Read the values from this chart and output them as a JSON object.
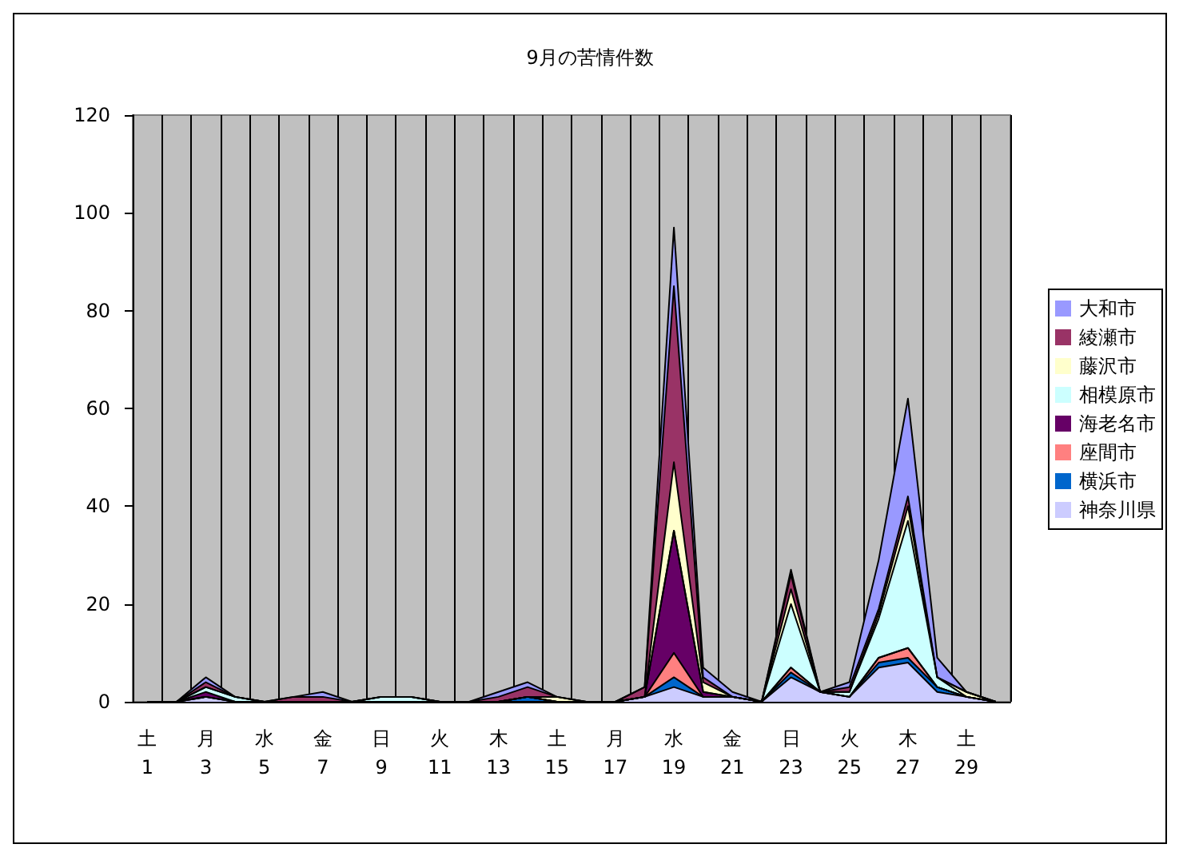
{
  "chart_data": {
    "type": "area",
    "title": "9月の苦情件数",
    "stacked": true,
    "categories": [
      "土\n1",
      null,
      "月\n3",
      null,
      "水\n5",
      null,
      "金\n7",
      null,
      "日\n9",
      null,
      "火\n11",
      null,
      "木\n13",
      null,
      "土\n15",
      null,
      "月\n17",
      null,
      "水\n19",
      null,
      "金\n21",
      null,
      "日\n23",
      null,
      "火\n25",
      null,
      "木\n27",
      null,
      "土\n29",
      null
    ],
    "series": [
      {
        "name": "神奈川県",
        "color": "#ccccff",
        "values": [
          0,
          0,
          1,
          0,
          0,
          0,
          0,
          0,
          0,
          0,
          0,
          0,
          0,
          0,
          0,
          0,
          0,
          1,
          3,
          1,
          1,
          0,
          5,
          2,
          1,
          7,
          8,
          2,
          1,
          0
        ]
      },
      {
        "name": "横浜市",
        "color": "#0066cc",
        "values": [
          0,
          0,
          0,
          0,
          0,
          0,
          0,
          0,
          0,
          0,
          0,
          0,
          0,
          1,
          0,
          0,
          0,
          0,
          2,
          0,
          0,
          0,
          1,
          0,
          0,
          1,
          1,
          1,
          0,
          0
        ]
      },
      {
        "name": "座間市",
        "color": "#ff8080",
        "values": [
          0,
          0,
          0,
          0,
          0,
          0,
          0,
          0,
          0,
          0,
          0,
          0,
          0,
          0,
          0,
          0,
          0,
          0,
          5,
          0,
          0,
          0,
          1,
          0,
          0,
          1,
          2,
          0,
          0,
          0
        ]
      },
      {
        "name": "海老名市",
        "color": "#660066",
        "values": [
          0,
          0,
          1,
          0,
          0,
          0,
          0,
          0,
          0,
          0,
          0,
          0,
          0,
          0,
          0,
          0,
          0,
          0,
          25,
          1,
          0,
          0,
          0,
          0,
          0,
          0,
          0,
          0,
          0,
          0
        ]
      },
      {
        "name": "相模原市",
        "color": "#ccffff",
        "values": [
          0,
          0,
          1,
          1,
          0,
          0,
          0,
          0,
          1,
          1,
          0,
          0,
          0,
          0,
          0,
          0,
          0,
          0,
          0,
          0,
          0,
          0,
          13,
          0,
          1,
          8,
          26,
          2,
          0,
          0
        ]
      },
      {
        "name": "藤沢市",
        "color": "#ffffcc",
        "values": [
          0,
          0,
          0,
          0,
          0,
          0,
          0,
          0,
          0,
          0,
          0,
          0,
          0,
          0,
          1,
          0,
          0,
          0,
          14,
          2,
          0,
          0,
          3,
          0,
          0,
          1,
          3,
          0,
          1,
          0
        ]
      },
      {
        "name": "綾瀬市",
        "color": "#993366",
        "values": [
          0,
          0,
          1,
          0,
          0,
          1,
          1,
          0,
          0,
          0,
          0,
          0,
          1,
          2,
          0,
          0,
          0,
          2,
          36,
          1,
          0,
          0,
          3,
          0,
          1,
          1,
          2,
          0,
          0,
          0
        ]
      },
      {
        "name": "大和市",
        "color": "#9999ff",
        "values": [
          0,
          0,
          1,
          0,
          0,
          0,
          1,
          0,
          0,
          0,
          0,
          0,
          1,
          1,
          0,
          0,
          0,
          0,
          12,
          2,
          1,
          0,
          1,
          0,
          1,
          10,
          20,
          4,
          0,
          0
        ]
      }
    ],
    "ylim": [
      0,
      120
    ],
    "yticks": [
      0,
      20,
      40,
      60,
      80,
      100,
      120
    ],
    "grid": "x",
    "legend": "right"
  }
}
